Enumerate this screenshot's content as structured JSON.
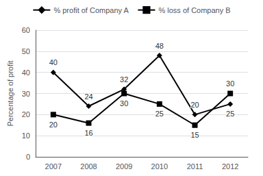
{
  "chart_data": {
    "type": "line",
    "categories": [
      "2007",
      "2008",
      "2009",
      "2010",
      "2011",
      "2012"
    ],
    "series": [
      {
        "name": "% profit of Company A",
        "color": "black",
        "marker": "diamond",
        "values": [
          40,
          24,
          32,
          48,
          20,
          25
        ]
      },
      {
        "name": "% loss of Company B",
        "color": "black",
        "marker": "square",
        "values": [
          20,
          16,
          30,
          25,
          15,
          30
        ]
      }
    ],
    "ylabel": "Percentage of profit",
    "ylim": [
      0,
      60
    ],
    "yticks": [
      0,
      10,
      20,
      30,
      40,
      50,
      60
    ],
    "grid": true,
    "legend": "top",
    "data_labels": true
  }
}
